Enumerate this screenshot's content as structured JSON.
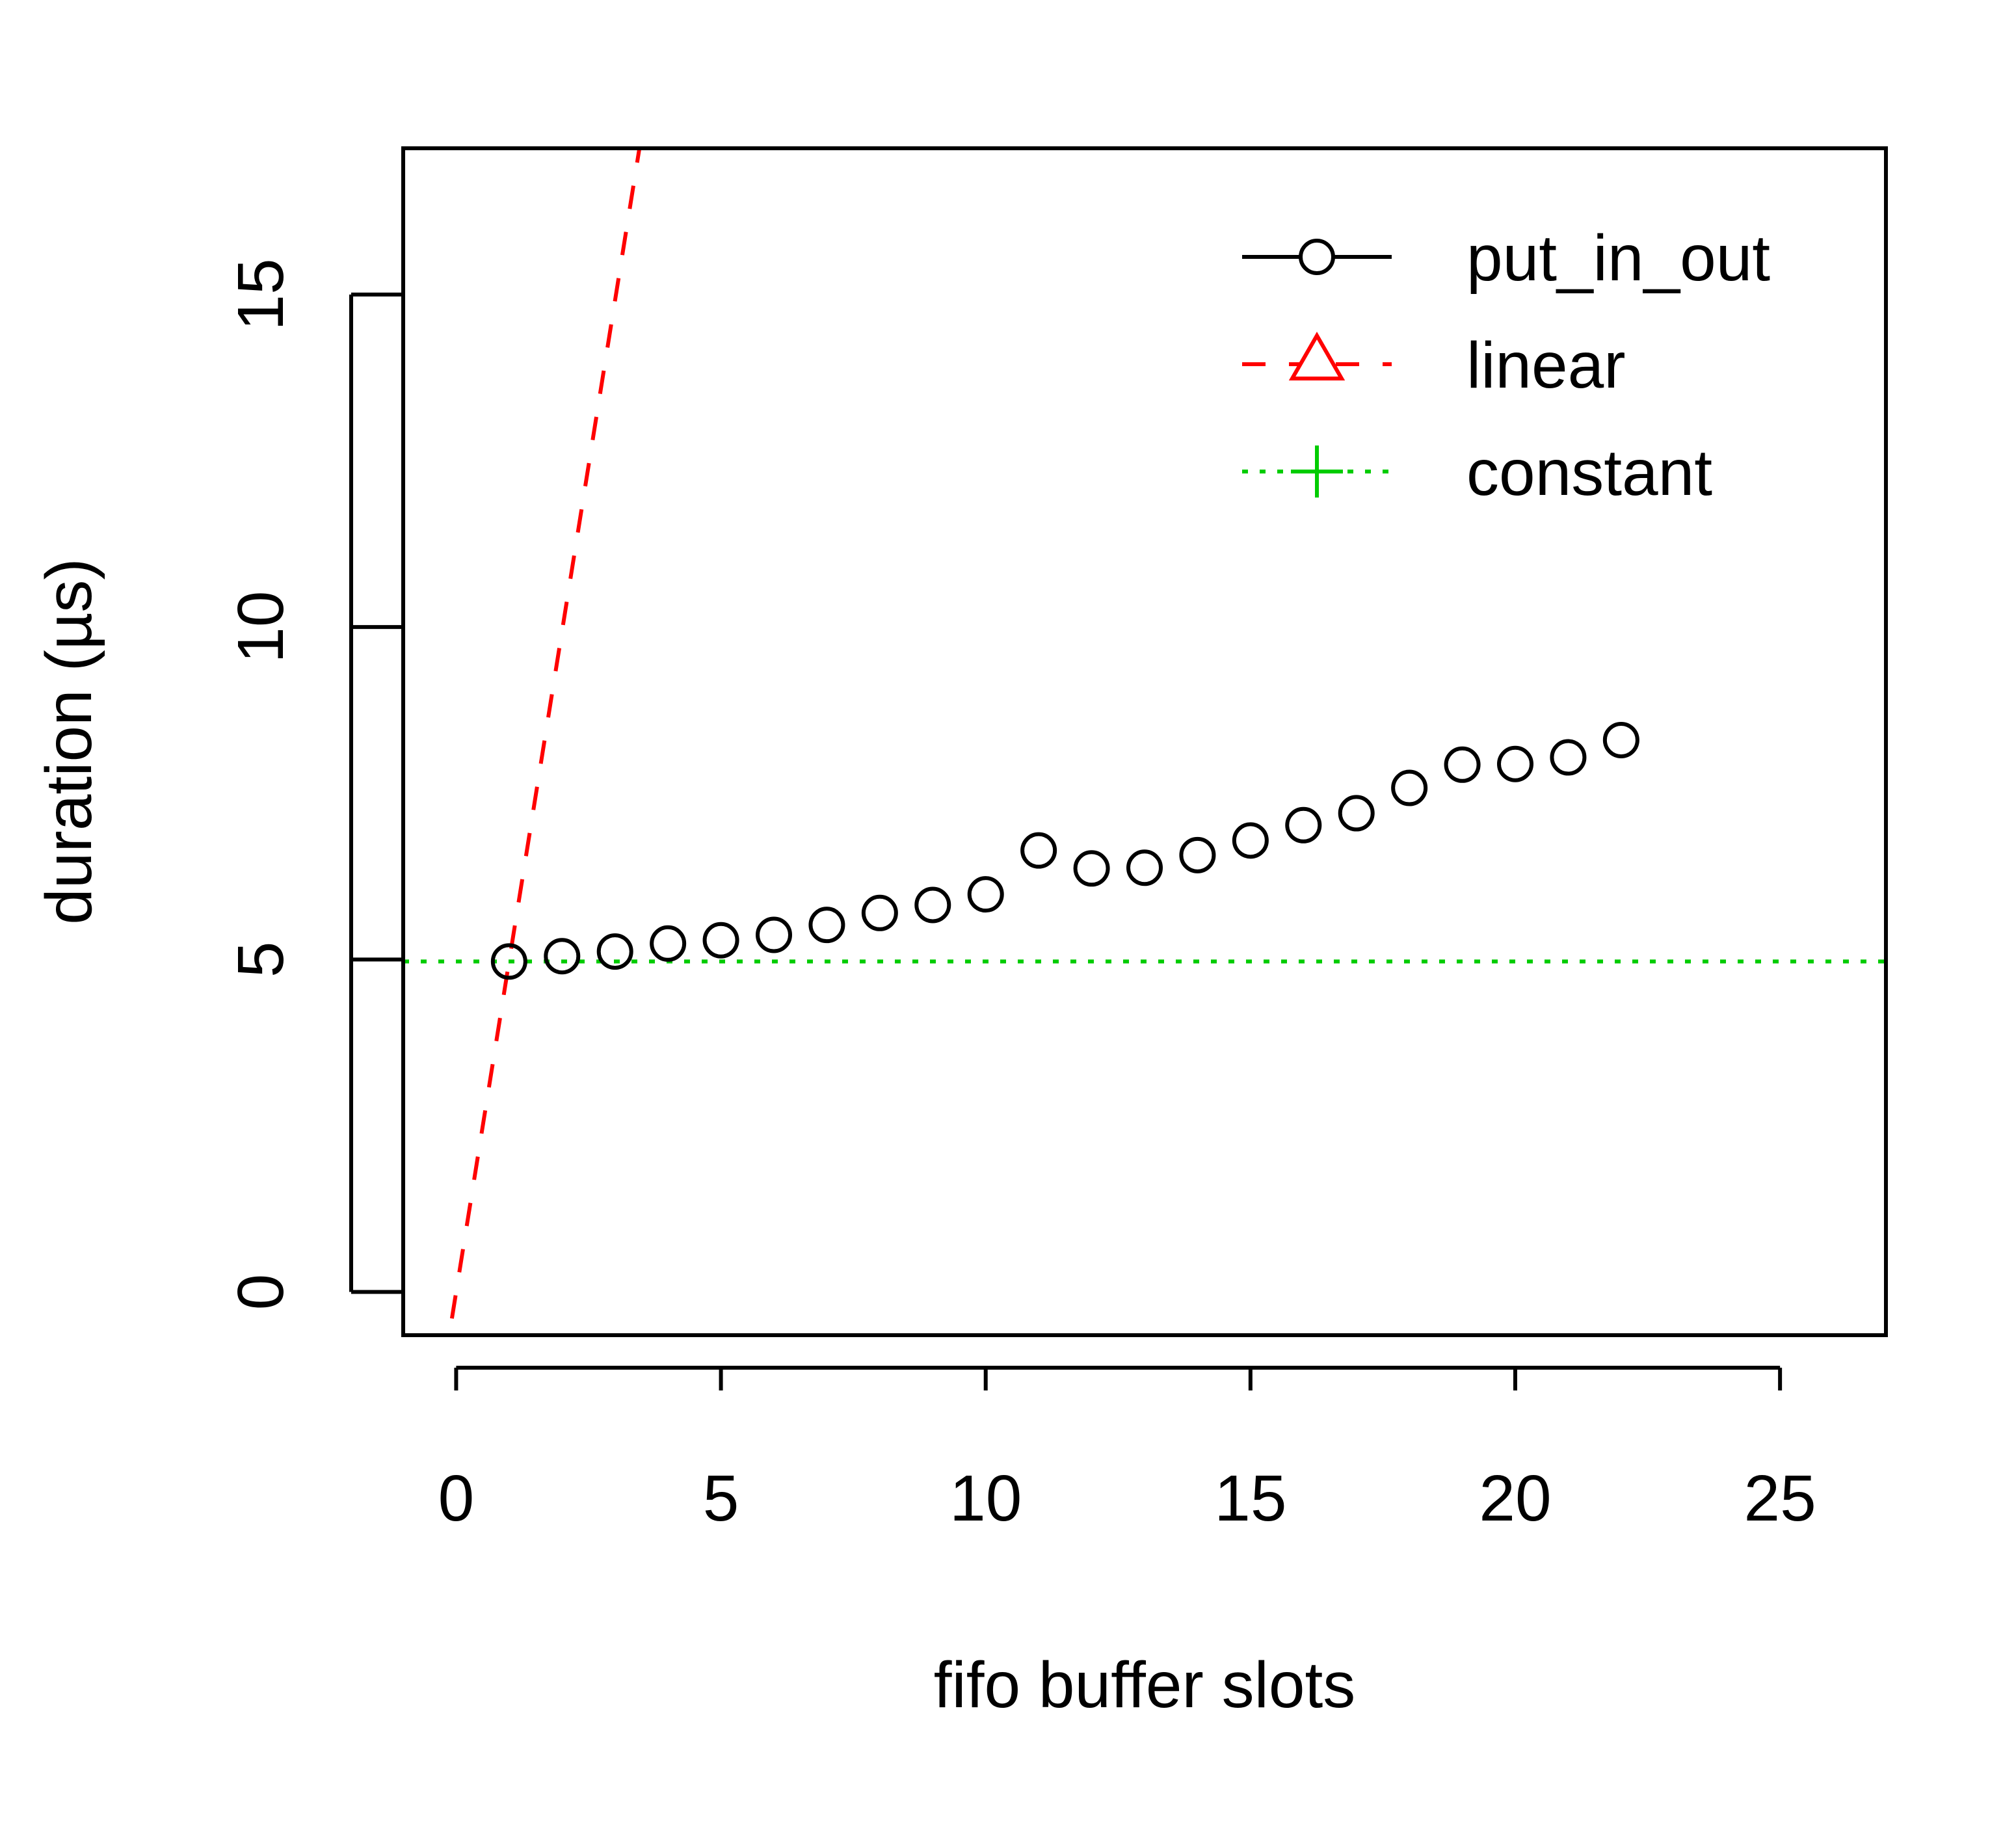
{
  "chart_data": {
    "type": "scatter",
    "xlabel": "fifo buffer slots",
    "ylabel": "duration (µs)",
    "xlim": [
      -1,
      27
    ],
    "ylim": [
      -0.65,
      17.2
    ],
    "x_ticks": [
      0,
      5,
      10,
      15,
      20,
      25
    ],
    "y_ticks": [
      0,
      5,
      10,
      15
    ],
    "grid": false,
    "legend_position": "top-right",
    "series": [
      {
        "name": "put_in_out",
        "style": "points",
        "marker": "circle",
        "color": "#000000",
        "x": [
          1,
          2,
          3,
          4,
          5,
          6,
          7,
          8,
          9,
          10,
          11,
          12,
          13,
          14,
          15,
          16,
          17,
          18,
          19,
          20,
          21,
          22
        ],
        "values": [
          4.97,
          5.05,
          5.12,
          5.24,
          5.29,
          5.37,
          5.52,
          5.7,
          5.82,
          5.98,
          6.64,
          6.37,
          6.38,
          6.57,
          6.79,
          7.02,
          7.2,
          7.58,
          7.93,
          7.94,
          8.04,
          8.3
        ]
      },
      {
        "name": "linear",
        "style": "dashed-line",
        "marker": "triangle",
        "color": "#ff0000",
        "slope": 4.97,
        "intercept": 0
      },
      {
        "name": "constant",
        "style": "dotted-line",
        "marker": "plus",
        "color": "#00cc00",
        "value": 4.97
      }
    ]
  }
}
